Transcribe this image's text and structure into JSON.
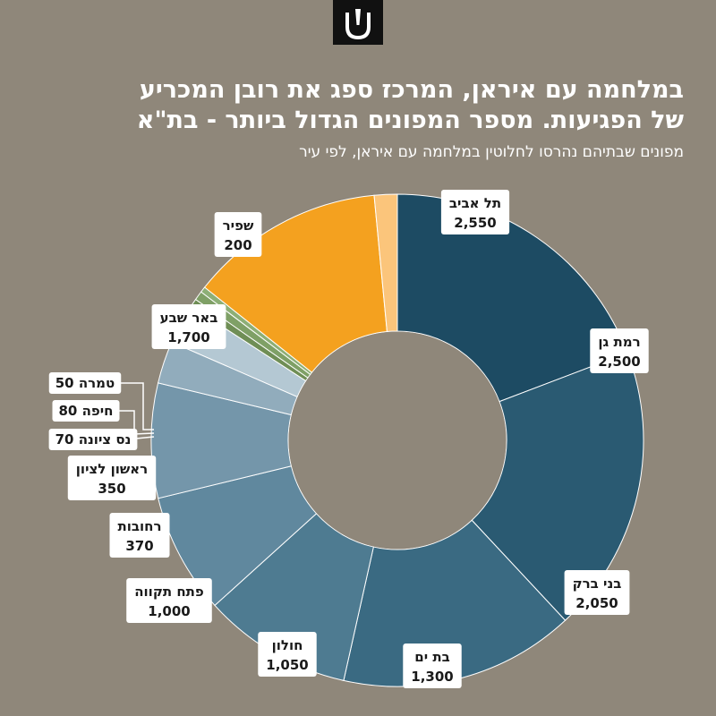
{
  "header": {
    "logo": "logo-mark",
    "title_line1": "במלחמה עם איראן, המרכז ספג את רובן המכריע",
    "title_line2": "של הפגיעות. מספר המפונים הגדול ביותר - בת\"א",
    "subtitle": "מפונים שבתיהם נהרסו לחלוטין במלחמה עם איראן, לפי עיר"
  },
  "chart_data": {
    "type": "pie",
    "donut": true,
    "start": "12 o'clock",
    "direction": "clockwise",
    "categories": [
      "תל אביב",
      "רמת גן",
      "בני ברק",
      "בת ים",
      "חולון",
      "פתח תקווה",
      "רחובות",
      "ראשון לציון",
      "נס ציונה",
      "חיפה",
      "טמרה",
      "באר שבע",
      "שפיר"
    ],
    "values": [
      2550,
      2500,
      2050,
      1300,
      1050,
      1000,
      370,
      350,
      70,
      80,
      50,
      1700,
      200
    ],
    "value_labels": [
      "2,550",
      "2,500",
      "2,050",
      "1,300",
      "1,050",
      "1,000",
      "370",
      "350",
      "70",
      "80",
      "50",
      "1,700",
      "200"
    ],
    "colors": [
      "#1d4b63",
      "#2a5a72",
      "#3a6a82",
      "#4e7b91",
      "#60889e",
      "#7496aa",
      "#91acbc",
      "#b4c8d3",
      "#6f8e55",
      "#7fa066",
      "#8daf76",
      "#f4a11f",
      "#fbc57b"
    ],
    "label_styles": [
      "stacked",
      "stacked",
      "stacked",
      "stacked",
      "stacked",
      "stacked",
      "stacked",
      "stacked",
      "inline-callout",
      "inline-callout",
      "inline-callout",
      "stacked",
      "stacked"
    ]
  }
}
